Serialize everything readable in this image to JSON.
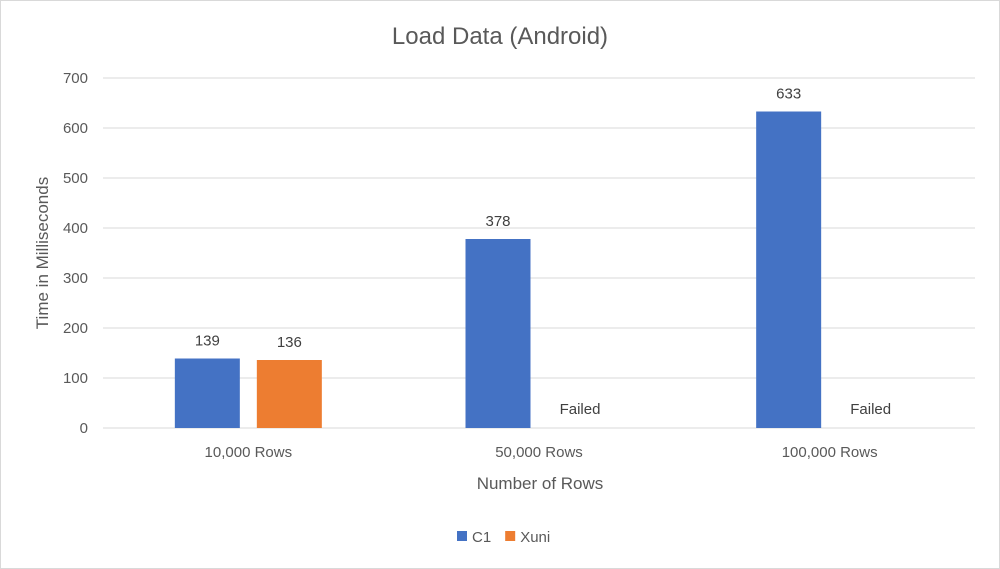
{
  "chart_data": {
    "type": "bar",
    "title": "Load Data (Android)",
    "xlabel": "Number of Rows",
    "ylabel": "Time in Milliseconds",
    "categories": [
      "10,000 Rows",
      "50,000 Rows",
      "100,000 Rows"
    ],
    "series": [
      {
        "name": "C1",
        "color": "#4472c4",
        "values": [
          139,
          378,
          633
        ],
        "labels": [
          "139",
          "378",
          "633"
        ]
      },
      {
        "name": "Xuni",
        "color": "#ed7d31",
        "values": [
          136,
          null,
          null
        ],
        "labels": [
          "136",
          "Failed",
          "Failed"
        ]
      }
    ],
    "ylim": [
      0,
      700
    ],
    "yticks": [
      "0",
      "100",
      "200",
      "300",
      "400",
      "500",
      "600",
      "700"
    ],
    "grid": true,
    "legend": "bottom"
  }
}
